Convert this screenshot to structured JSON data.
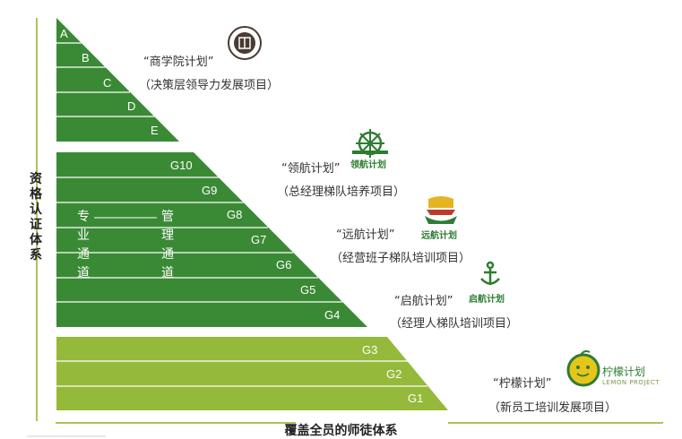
{
  "colors": {
    "dark_green": "#3a8a35",
    "light_green": "#95b93a",
    "axis_line": "#a9c45a",
    "logo_green": "#2e7d32",
    "logo_gold": "#e6b323"
  },
  "vertical_axis_label": "资格认证体系",
  "horizontal_axis_label": "覆盖全员的师徒体系",
  "top_levels": [
    "A",
    "B",
    "C",
    "D",
    "E"
  ],
  "middle_levels": [
    "G10",
    "G9",
    "G8",
    "G7",
    "G6",
    "G5",
    "G4"
  ],
  "bottom_levels": [
    "G3",
    "G2",
    "G1"
  ],
  "tracks": {
    "professional": "专业通道",
    "management": "管理通道"
  },
  "plans": [
    {
      "name": "“商学院计划”",
      "desc": "（决策层领导力发展项目）",
      "logo_icon": "seal-icon",
      "logo_text": ""
    },
    {
      "name": "“领航计划”",
      "desc": "（总经理梯队培养项目）",
      "logo_icon": "ship-wheel-icon",
      "logo_text": "领航计划"
    },
    {
      "name": "“远航计划”",
      "desc": "（经营班子梯队培训项目）",
      "logo_icon": "sailboat-icon",
      "logo_text": "远航计划"
    },
    {
      "name": "“启航计划”",
      "desc": "（经理人梯队培训项目）",
      "logo_icon": "anchor-icon",
      "logo_text": "启航计划"
    },
    {
      "name": "“柠檬计划”",
      "desc": "（新员工培训发展项目）",
      "logo_icon": "lemon-icon",
      "logo_text": "柠檬计划",
      "logo_subtext": "LEMON PROJECT"
    }
  ]
}
